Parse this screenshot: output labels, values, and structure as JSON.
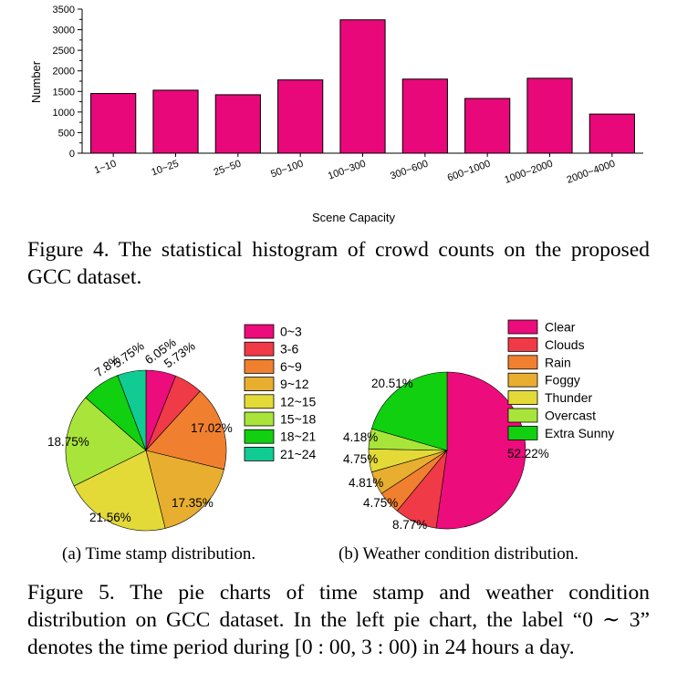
{
  "chart_data": [
    {
      "type": "bar",
      "xlabel": "Scene Capacity",
      "ylabel": "Number",
      "ylim": [
        0,
        3500
      ],
      "yticks": [
        "0",
        "500",
        "1000",
        "1500",
        "2000",
        "2500",
        "3000",
        "3500"
      ],
      "categories": [
        "1~10",
        "10~25",
        "25~50",
        "50~100",
        "100~300",
        "300~600",
        "600~1000",
        "1000~2000",
        "2000~4000"
      ],
      "values": [
        1450,
        1530,
        1420,
        1780,
        3240,
        1800,
        1330,
        1820,
        950
      ],
      "bar_color": "#E8087A"
    },
    {
      "type": "pie",
      "categories": [
        "0~3",
        "3-6",
        "6~9",
        "9~12",
        "12~15",
        "15~18",
        "18~21",
        "21~24"
      ],
      "values": [
        6.05,
        5.73,
        17.02,
        17.35,
        21.56,
        18.75,
        7.8,
        5.75
      ],
      "labels": [
        "6.05%",
        "5.73%",
        "17.02%",
        "17.35%",
        "21.56%",
        "18.75%",
        "7.8%",
        "5.75%"
      ],
      "colors": [
        "#EC0C7C",
        "#F03A48",
        "#F08030",
        "#E8AE30",
        "#E3DA38",
        "#A8E43A",
        "#10D010",
        "#10CC92"
      ],
      "legend_position": "right"
    },
    {
      "type": "pie",
      "categories": [
        "Clear",
        "Clouds",
        "Rain",
        "Foggy",
        "Thunder",
        "Overcast",
        "Extra Sunny"
      ],
      "values": [
        52.22,
        8.77,
        4.75,
        4.81,
        4.75,
        4.18,
        20.51
      ],
      "labels": [
        "52.22%",
        "8.77%",
        "4.75%",
        "4.81%",
        "4.75%",
        "4.18%",
        "20.51%"
      ],
      "colors": [
        "#EC0C7C",
        "#F03A48",
        "#F08030",
        "#E8AE30",
        "#E3DA38",
        "#A8E43A",
        "#10D010"
      ],
      "legend_position": "top-right"
    }
  ],
  "captions": {
    "fig4": "Figure 4. The statistical histogram of crowd counts on the proposed GCC dataset.",
    "sub_a": "(a) Time stamp distribution.",
    "sub_b": "(b) Weather condition distribution.",
    "fig5": "Figure 5. The pie charts of time stamp and weather condition distribution on GCC dataset. In the left pie chart, the label “0 ∼ 3” denotes the time period during [0 : 00, 3 : 00) in 24 hours a day."
  }
}
